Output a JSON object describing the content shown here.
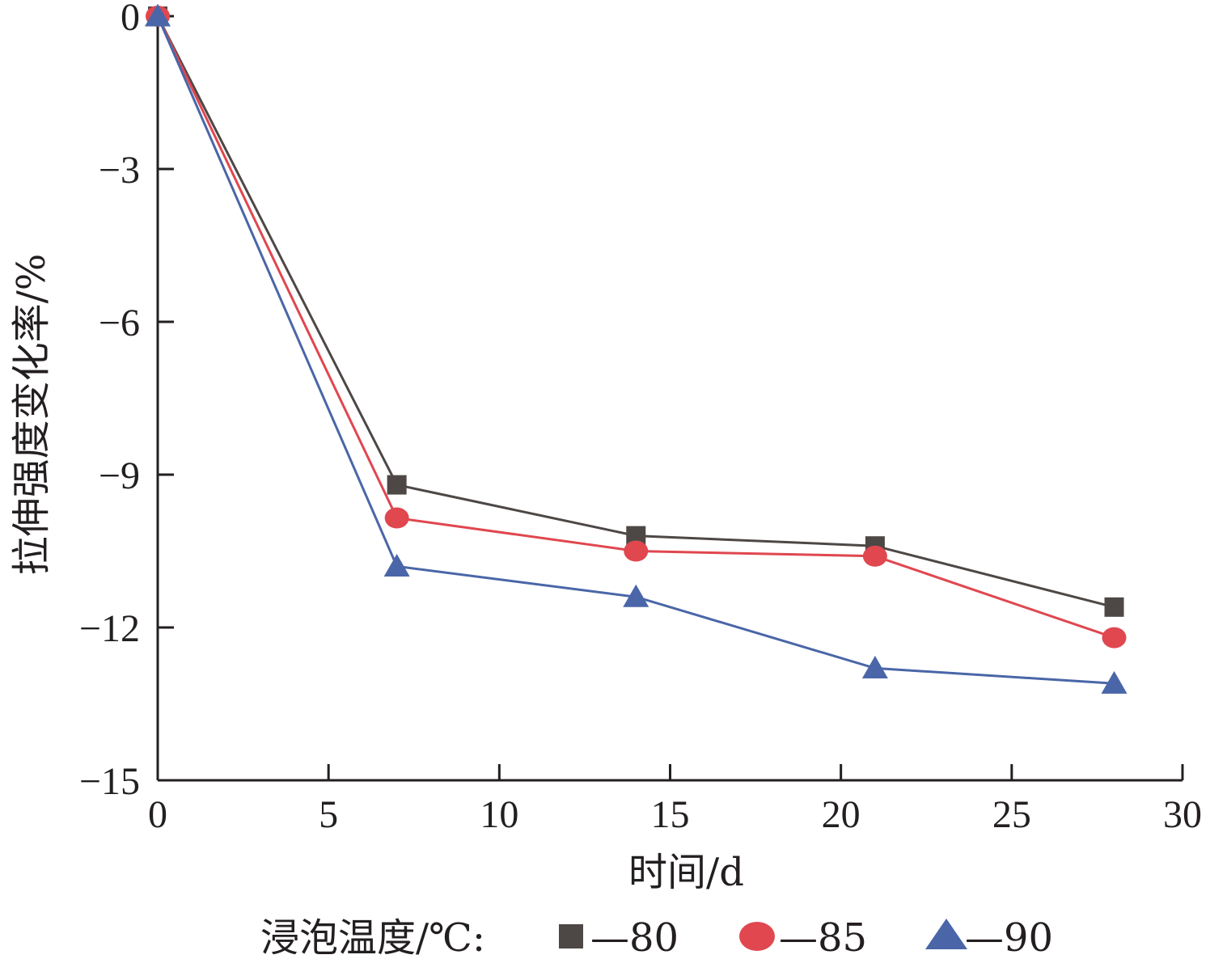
{
  "chart_data": {
    "type": "line",
    "xlabel": "时间/d",
    "ylabel": "拉伸强度变化率/%",
    "xlim": [
      0,
      30
    ],
    "ylim": [
      -15,
      0
    ],
    "xticks": [
      0,
      5,
      10,
      15,
      20,
      25,
      30
    ],
    "yticks": [
      0,
      -3,
      -6,
      -9,
      -12,
      -15
    ],
    "ytick_labels": [
      "0",
      "−3",
      "−6",
      "−9",
      "−12",
      "−15"
    ],
    "grid": false,
    "legend": {
      "placement": "bottom",
      "prefix": "浸泡温度/℃:"
    },
    "x": [
      0,
      7,
      14,
      21,
      28
    ],
    "series": [
      {
        "name": "—80",
        "marker": "square",
        "color": "#4d4845",
        "values": [
          0,
          -9.2,
          -10.2,
          -10.4,
          -11.6
        ]
      },
      {
        "name": "—85",
        "marker": "circle",
        "color": "#e0474f",
        "values": [
          0,
          -9.85,
          -10.5,
          -10.6,
          -12.2
        ]
      },
      {
        "name": "—90",
        "marker": "triangle",
        "color": "#4a66a8",
        "values": [
          0,
          -10.8,
          -11.4,
          -12.8,
          -13.1
        ]
      }
    ]
  }
}
